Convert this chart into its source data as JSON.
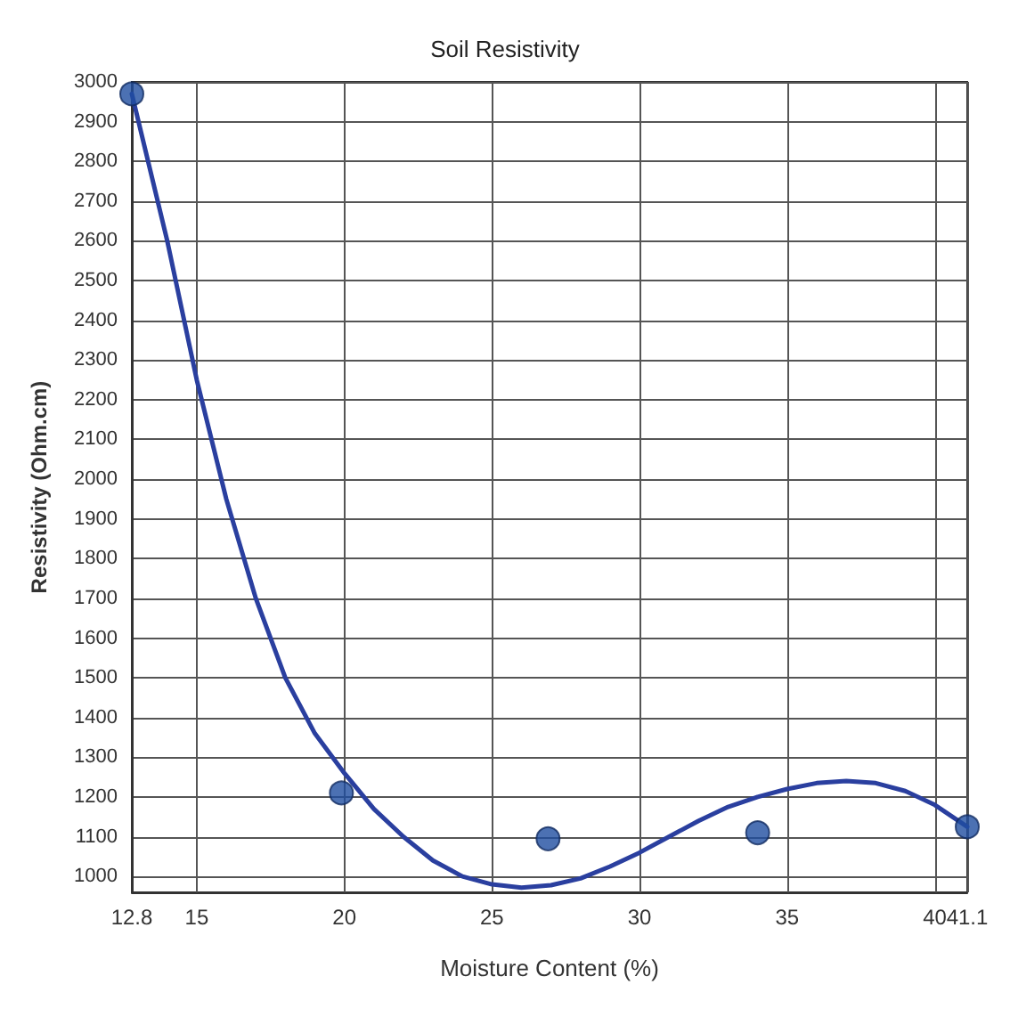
{
  "chart_data": {
    "type": "scatter",
    "title": "Soil Resistivity",
    "xlabel": "Moisture Content (%)",
    "ylabel": "Resistivity (Ohm.cm)",
    "xlim": [
      12.8,
      41.1
    ],
    "xticks": [
      12.8,
      15,
      20,
      25,
      30,
      35,
      40,
      41.1
    ],
    "ylim": [
      960,
      3000
    ],
    "yticks": [
      1000,
      1100,
      1200,
      1300,
      1400,
      1500,
      1600,
      1700,
      1800,
      1900,
      2000,
      2100,
      2200,
      2300,
      2400,
      2500,
      2600,
      2700,
      2800,
      2900,
      3000
    ],
    "grid": true,
    "marker": "circle",
    "series": [
      {
        "color": "#1f4ea0",
        "x": [
          12.8,
          19.9,
          26.9,
          34,
          41.1
        ],
        "values": [
          2970,
          1210,
          1095,
          1110,
          1125
        ]
      },
      {
        "type": "line",
        "color": "#2a3f9f",
        "marker": "none",
        "line_style": "solid",
        "x": [
          12.8,
          14,
          15,
          16,
          17,
          18,
          19,
          20,
          21,
          22,
          23,
          24,
          25,
          26,
          27,
          28,
          29,
          30,
          31,
          32,
          33,
          34,
          35,
          36,
          37,
          38,
          39,
          40,
          41.1
        ],
        "values": [
          2970,
          2600,
          2250,
          1950,
          1700,
          1500,
          1360,
          1260,
          1170,
          1100,
          1040,
          1000,
          980,
          972,
          978,
          995,
          1025,
          1060,
          1100,
          1140,
          1175,
          1200,
          1220,
          1235,
          1240,
          1235,
          1215,
          1180,
          1125
        ]
      }
    ]
  }
}
